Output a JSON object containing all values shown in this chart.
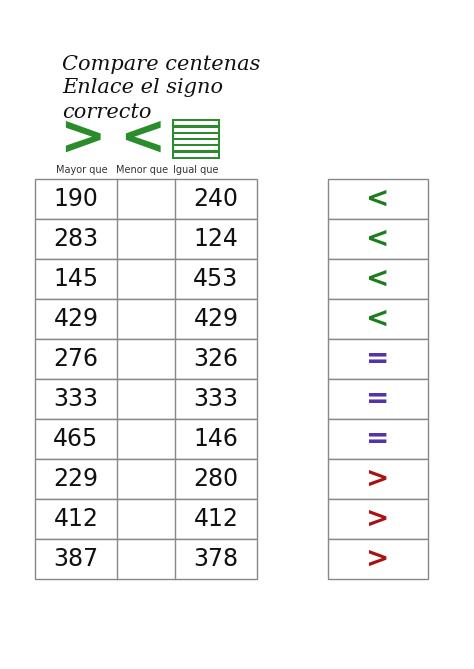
{
  "title": "Compare centenas",
  "subtitle_line1": "Enlace el signo",
  "subtitle_line2": "correcto",
  "legend_labels": [
    "Mayor que",
    "Menor que",
    "Igual que"
  ],
  "left_numbers": [
    190,
    283,
    145,
    429,
    276,
    333,
    465,
    229,
    412,
    387
  ],
  "right_numbers": [
    240,
    124,
    453,
    429,
    326,
    333,
    146,
    280,
    412,
    378
  ],
  "signs": [
    "<",
    "<",
    "<",
    "<",
    "=",
    "=",
    "=",
    ">",
    ">",
    ">"
  ],
  "sign_colors": [
    "#1a7c1a",
    "#1a7c1a",
    "#1a7c1a",
    "#1a7c1a",
    "#5533aa",
    "#5533aa",
    "#5533aa",
    "#aa1111",
    "#aa1111",
    "#aa1111"
  ],
  "background_color": "#ffffff",
  "table_border_color": "#888888",
  "number_color": "#111111",
  "title_color": "#111111"
}
